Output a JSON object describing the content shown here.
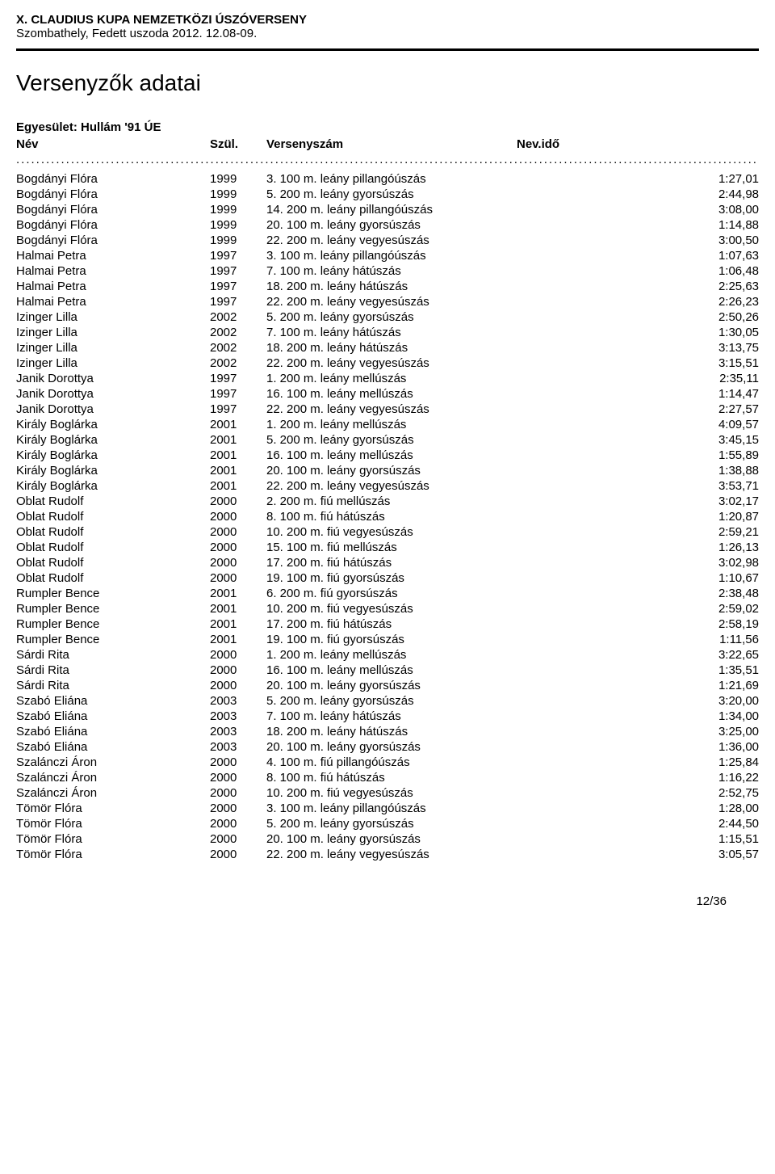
{
  "header": {
    "title": "X. CLAUDIUS KUPA NEMZETKÖZI ÚSZÓVERSENY",
    "subtitle": "Szombathely, Fedett uszoda 2012. 12.08-09."
  },
  "page_title": "Versenyzők adatai",
  "club_label": "Egyesület:",
  "club_name": "Hullám '91 ÚE",
  "columns": {
    "name": "Név",
    "year": "Szül.",
    "event": "Versenyszám",
    "time": "Nev.idő"
  },
  "rows": [
    {
      "name": "Bogdányi Flóra",
      "year": "1999",
      "event": "3. 100 m. leány pillangóúszás",
      "time": "1:27,01"
    },
    {
      "name": "Bogdányi Flóra",
      "year": "1999",
      "event": "5. 200 m. leány gyorsúszás",
      "time": "2:44,98"
    },
    {
      "name": "Bogdányi Flóra",
      "year": "1999",
      "event": "14. 200 m. leány pillangóúszás",
      "time": "3:08,00"
    },
    {
      "name": "Bogdányi Flóra",
      "year": "1999",
      "event": "20. 100 m. leány gyorsúszás",
      "time": "1:14,88"
    },
    {
      "name": "Bogdányi Flóra",
      "year": "1999",
      "event": "22. 200 m. leány vegyesúszás",
      "time": "3:00,50"
    },
    {
      "name": "Halmai Petra",
      "year": "1997",
      "event": "3. 100 m. leány pillangóúszás",
      "time": "1:07,63"
    },
    {
      "name": "Halmai Petra",
      "year": "1997",
      "event": "7. 100 m. leány hátúszás",
      "time": "1:06,48"
    },
    {
      "name": "Halmai Petra",
      "year": "1997",
      "event": "18. 200 m. leány hátúszás",
      "time": "2:25,63"
    },
    {
      "name": "Halmai Petra",
      "year": "1997",
      "event": "22. 200 m. leány vegyesúszás",
      "time": "2:26,23"
    },
    {
      "name": "Izinger Lilla",
      "year": "2002",
      "event": "5. 200 m. leány gyorsúszás",
      "time": "2:50,26"
    },
    {
      "name": "Izinger Lilla",
      "year": "2002",
      "event": "7. 100 m. leány hátúszás",
      "time": "1:30,05"
    },
    {
      "name": "Izinger Lilla",
      "year": "2002",
      "event": "18. 200 m. leány hátúszás",
      "time": "3:13,75"
    },
    {
      "name": "Izinger Lilla",
      "year": "2002",
      "event": "22. 200 m. leány vegyesúszás",
      "time": "3:15,51"
    },
    {
      "name": "Janik Dorottya",
      "year": "1997",
      "event": "1. 200 m. leány mellúszás",
      "time": "2:35,11"
    },
    {
      "name": "Janik Dorottya",
      "year": "1997",
      "event": "16. 100 m. leány mellúszás",
      "time": "1:14,47"
    },
    {
      "name": "Janik Dorottya",
      "year": "1997",
      "event": "22. 200 m. leány vegyesúszás",
      "time": "2:27,57"
    },
    {
      "name": "Király Boglárka",
      "year": "2001",
      "event": "1. 200 m. leány mellúszás",
      "time": "4:09,57"
    },
    {
      "name": "Király Boglárka",
      "year": "2001",
      "event": "5. 200 m. leány gyorsúszás",
      "time": "3:45,15"
    },
    {
      "name": "Király Boglárka",
      "year": "2001",
      "event": "16. 100 m. leány mellúszás",
      "time": "1:55,89"
    },
    {
      "name": "Király Boglárka",
      "year": "2001",
      "event": "20. 100 m. leány gyorsúszás",
      "time": "1:38,88"
    },
    {
      "name": "Király Boglárka",
      "year": "2001",
      "event": "22. 200 m. leány vegyesúszás",
      "time": "3:53,71"
    },
    {
      "name": "Oblat Rudolf",
      "year": "2000",
      "event": "2. 200 m. fiú mellúszás",
      "time": "3:02,17"
    },
    {
      "name": "Oblat Rudolf",
      "year": "2000",
      "event": "8. 100 m. fiú hátúszás",
      "time": "1:20,87"
    },
    {
      "name": "Oblat Rudolf",
      "year": "2000",
      "event": "10. 200 m. fiú vegyesúszás",
      "time": "2:59,21"
    },
    {
      "name": "Oblat Rudolf",
      "year": "2000",
      "event": "15. 100 m. fiú mellúszás",
      "time": "1:26,13"
    },
    {
      "name": "Oblat Rudolf",
      "year": "2000",
      "event": "17. 200 m. fiú hátúszás",
      "time": "3:02,98"
    },
    {
      "name": "Oblat Rudolf",
      "year": "2000",
      "event": "19. 100 m. fiú gyorsúszás",
      "time": "1:10,67"
    },
    {
      "name": "Rumpler Bence",
      "year": "2001",
      "event": "6. 200 m. fiú gyorsúszás",
      "time": "2:38,48"
    },
    {
      "name": "Rumpler Bence",
      "year": "2001",
      "event": "10. 200 m. fiú vegyesúszás",
      "time": "2:59,02"
    },
    {
      "name": "Rumpler Bence",
      "year": "2001",
      "event": "17. 200 m. fiú hátúszás",
      "time": "2:58,19"
    },
    {
      "name": "Rumpler Bence",
      "year": "2001",
      "event": "19. 100 m. fiú gyorsúszás",
      "time": "1:11,56"
    },
    {
      "name": "Sárdi Rita",
      "year": "2000",
      "event": "1. 200 m. leány mellúszás",
      "time": "3:22,65"
    },
    {
      "name": "Sárdi Rita",
      "year": "2000",
      "event": "16. 100 m. leány mellúszás",
      "time": "1:35,51"
    },
    {
      "name": "Sárdi Rita",
      "year": "2000",
      "event": "20. 100 m. leány gyorsúszás",
      "time": "1:21,69"
    },
    {
      "name": "Szabó Eliána",
      "year": "2003",
      "event": "5. 200 m. leány gyorsúszás",
      "time": "3:20,00"
    },
    {
      "name": "Szabó Eliána",
      "year": "2003",
      "event": "7. 100 m. leány hátúszás",
      "time": "1:34,00"
    },
    {
      "name": "Szabó Eliána",
      "year": "2003",
      "event": "18. 200 m. leány hátúszás",
      "time": "3:25,00"
    },
    {
      "name": "Szabó Eliána",
      "year": "2003",
      "event": "20. 100 m. leány gyorsúszás",
      "time": "1:36,00"
    },
    {
      "name": "Szalánczi Áron",
      "year": "2000",
      "event": "4. 100 m. fiú pillangóúszás",
      "time": "1:25,84"
    },
    {
      "name": "Szalánczi Áron",
      "year": "2000",
      "event": "8. 100 m. fiú hátúszás",
      "time": "1:16,22"
    },
    {
      "name": "Szalánczi Áron",
      "year": "2000",
      "event": "10. 200 m. fiú vegyesúszás",
      "time": "2:52,75"
    },
    {
      "name": "Tömör Flóra",
      "year": "2000",
      "event": "3. 100 m. leány pillangóúszás",
      "time": "1:28,00"
    },
    {
      "name": "Tömör Flóra",
      "year": "2000",
      "event": "5. 200 m. leány gyorsúszás",
      "time": "2:44,50"
    },
    {
      "name": "Tömör Flóra",
      "year": "2000",
      "event": "20. 100 m. leány gyorsúszás",
      "time": "1:15,51"
    },
    {
      "name": "Tömör Flóra",
      "year": "2000",
      "event": "22. 200 m. leány vegyesúszás",
      "time": "3:05,57"
    }
  ],
  "footer": {
    "page": "12/36"
  }
}
